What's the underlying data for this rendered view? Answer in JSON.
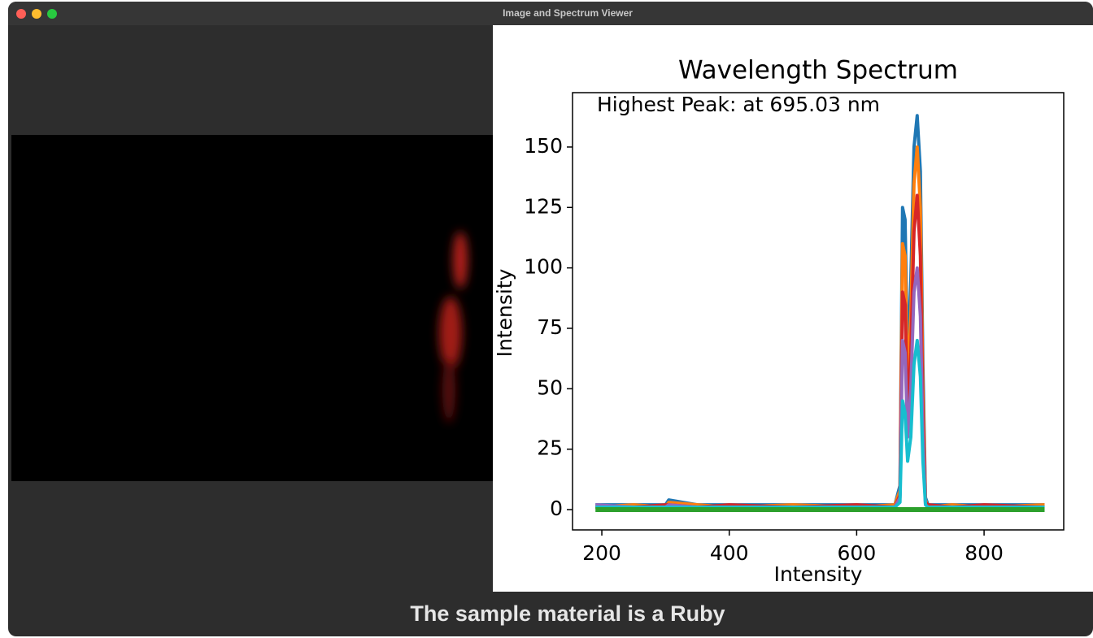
{
  "window": {
    "title": "Image and Spectrum Viewer"
  },
  "caption": "The sample material is a Ruby",
  "chart_data": {
    "type": "line",
    "title": "Wavelength Spectrum",
    "x_label": "Intensity",
    "y_label": "Intensity",
    "annotation": "Highest Peak: at 695.03 nm",
    "x": [
      190,
      250,
      300,
      305,
      350,
      400,
      500,
      600,
      660,
      668,
      672,
      676,
      680,
      685,
      690,
      695,
      700,
      704,
      708,
      712,
      750,
      800,
      895
    ],
    "series": [
      {
        "color": "#1f77b4",
        "values": [
          2,
          2,
          2,
          4,
          2,
          2,
          2,
          2,
          2,
          10,
          125,
          120,
          60,
          95,
          150,
          163,
          140,
          60,
          5,
          2,
          2,
          2,
          2
        ]
      },
      {
        "color": "#ff7f0e",
        "values": [
          1,
          2,
          1,
          3,
          2,
          1,
          2,
          1,
          2,
          8,
          110,
          105,
          50,
          80,
          135,
          150,
          125,
          50,
          4,
          1,
          2,
          1,
          2
        ]
      },
      {
        "color": "#d62728",
        "values": [
          1,
          1,
          2,
          2,
          1,
          2,
          1,
          2,
          1,
          6,
          90,
          85,
          40,
          65,
          115,
          130,
          105,
          40,
          3,
          2,
          1,
          2,
          1
        ]
      },
      {
        "color": "#9467bd",
        "values": [
          2,
          1,
          1,
          2,
          1,
          1,
          1,
          1,
          1,
          5,
          70,
          65,
          30,
          50,
          90,
          100,
          80,
          30,
          2,
          1,
          1,
          1,
          1
        ]
      },
      {
        "color": "#17becf",
        "values": [
          1,
          1,
          1,
          1,
          1,
          1,
          1,
          1,
          1,
          3,
          45,
          40,
          20,
          30,
          60,
          70,
          55,
          20,
          2,
          1,
          1,
          1,
          1
        ]
      },
      {
        "color": "#2ca02c",
        "values": [
          0,
          0,
          0,
          0,
          0,
          0,
          0,
          0,
          0,
          0,
          0,
          0,
          0,
          0,
          0,
          0,
          0,
          0,
          0,
          0,
          0,
          0,
          0
        ]
      }
    ],
    "xlim": [
      154,
      925
    ],
    "ylim": [
      -8.4,
      172.5
    ],
    "xticks": [
      200,
      400,
      600,
      800
    ],
    "yticks": [
      0,
      25,
      50,
      75,
      100,
      125,
      150
    ]
  }
}
